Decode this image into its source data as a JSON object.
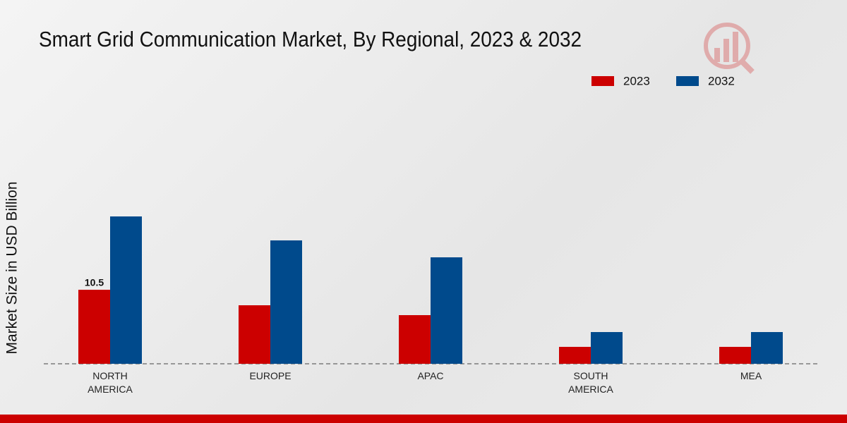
{
  "chart_data": {
    "type": "bar",
    "title": "Smart Grid Communication Market, By Regional, 2023 & 2032",
    "y_label": "Market Size in USD Billion",
    "categories": [
      "NORTH AMERICA",
      "EUROPE",
      "APAC",
      "SOUTH AMERICA",
      "MEA"
    ],
    "series": [
      {
        "name": "2023",
        "color": "#cc0000",
        "values": [
          10.5,
          8.3,
          6.9,
          2.4,
          2.4
        ],
        "value_labels": [
          "10.5",
          null,
          null,
          null,
          null
        ]
      },
      {
        "name": "2032",
        "color": "#004a8c",
        "values": [
          20.9,
          17.5,
          15.1,
          4.5,
          4.5
        ]
      }
    ],
    "ylim": [
      0,
      30
    ],
    "legend": "top-right"
  }
}
